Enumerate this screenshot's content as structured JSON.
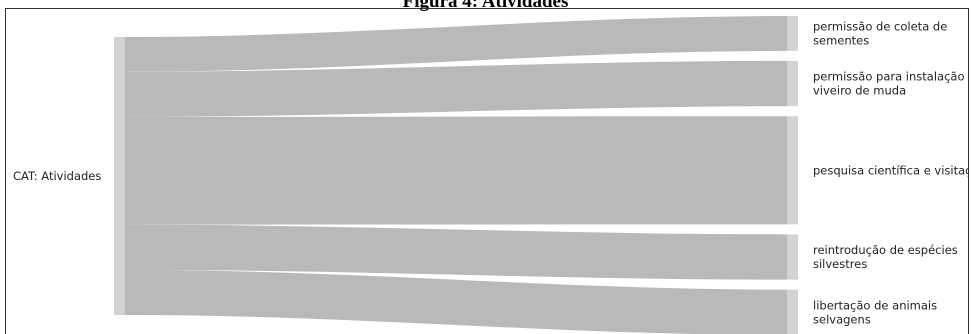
{
  "figure": {
    "title": "Figura 4: Atividades"
  },
  "chart_data": {
    "type": "sankey",
    "source": {
      "label": "CAT: Atividades"
    },
    "targets": [
      {
        "label_lines": [
          "permissão de coleta de",
          "sementes"
        ],
        "value": 1
      },
      {
        "label_lines": [
          "permissão para instalação d",
          "viveiro de muda"
        ],
        "value": 1.3
      },
      {
        "label_lines": [
          "pesquisa científica e visitaçã"
        ],
        "value": 3.1
      },
      {
        "label_lines": [
          "reintrodução de espécies",
          "silvestres"
        ],
        "value": 1.3
      },
      {
        "label_lines": [
          "libertação de animais",
          "selvagens"
        ],
        "value": 1.3
      }
    ],
    "colors": {
      "link": "#b9b9b9",
      "node": "#d3d3d3"
    }
  }
}
